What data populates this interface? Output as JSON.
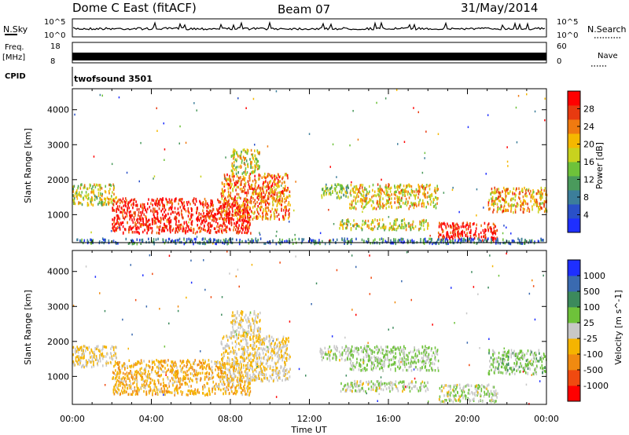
{
  "header": {
    "title": "Dome C East (fitACF)",
    "beam": "Beam 07",
    "date": "31/May/2014"
  },
  "top_panels": {
    "nsky_label": "N.Sky",
    "nsky_hi": "10^5",
    "nsky_lo": "10^0",
    "nsearch_label": "N.Search",
    "nsearch_hi": "10^5",
    "nsearch_lo": "10^0",
    "freq_label": "Freq.",
    "freq_unit": "[MHz]",
    "freq_hi": "18",
    "freq_lo": "8",
    "nave_label": "Nave",
    "nave_hi": "60",
    "nave_lo": "0",
    "cpid_label": "CPID",
    "cpid_value": "twofsound 3501"
  },
  "chart_data": [
    {
      "type": "heatmap",
      "name": "power",
      "ylabel": "Slant Range [km]",
      "xlabel": "",
      "ylim": [
        200,
        4600
      ],
      "yticks": [
        "1000",
        "2000",
        "3000",
        "4000"
      ],
      "colorbar_label": "Power [dB]",
      "colorbar_ticks": [
        "4",
        "8",
        "12",
        "16",
        "20",
        "24",
        "28"
      ],
      "colorbar_range": [
        0,
        32
      ],
      "colors": [
        "#1e2fff",
        "#2a50c8",
        "#3c7e9a",
        "#4a9a5c",
        "#6ec23a",
        "#c8d21e",
        "#f5b800",
        "#f07a10",
        "#e83a10",
        "#ff0000"
      ],
      "regions": [
        {
          "t0": 0.0,
          "t1": 2.2,
          "r0": 1300,
          "r1": 1900,
          "power": 18
        },
        {
          "t0": 2.0,
          "t1": 9.0,
          "r0": 500,
          "r1": 1500,
          "power": 30
        },
        {
          "t0": 7.5,
          "t1": 11.0,
          "r0": 900,
          "r1": 2200,
          "power": 24
        },
        {
          "t0": 8.0,
          "t1": 9.5,
          "r0": 2200,
          "r1": 2900,
          "power": 18
        },
        {
          "t0": 12.5,
          "t1": 14.0,
          "r0": 1500,
          "r1": 1900,
          "power": 14
        },
        {
          "t0": 14.0,
          "t1": 18.5,
          "r0": 1200,
          "r1": 1900,
          "power": 20
        },
        {
          "t0": 13.5,
          "t1": 18.0,
          "r0": 600,
          "r1": 900,
          "power": 18
        },
        {
          "t0": 18.5,
          "t1": 21.5,
          "r0": 300,
          "r1": 800,
          "power": 30
        },
        {
          "t0": 21.0,
          "t1": 24.0,
          "r0": 1100,
          "r1": 1800,
          "power": 22
        },
        {
          "t0": 0.0,
          "t1": 24.0,
          "r0": 200,
          "r1": 350,
          "power": 8
        }
      ]
    },
    {
      "type": "heatmap",
      "name": "velocity",
      "ylabel": "Slant Range [km]",
      "xlabel": "Time UT",
      "ylim": [
        200,
        4600
      ],
      "yticks": [
        "1000",
        "2000",
        "3000",
        "4000"
      ],
      "xticks": [
        "00:00",
        "04:00",
        "08:00",
        "12:00",
        "16:00",
        "20:00",
        "00:00"
      ],
      "colorbar_label": "Velocity [m s^-1]",
      "colorbar_ticks": [
        "1000",
        "500",
        "100",
        "25",
        "-25",
        "-100",
        "-500",
        "-1000"
      ],
      "colorbar_range": [
        -1200,
        1200
      ],
      "colors": [
        "#ff0000",
        "#f04a10",
        "#f08a10",
        "#f5b400",
        "#c8c8c8",
        "#6ec23a",
        "#3c8a5c",
        "#3a6ab0",
        "#1e2fff"
      ],
      "regions": [
        {
          "t0": 0.0,
          "t1": 2.2,
          "r0": 1300,
          "r1": 1900,
          "velocity": -150
        },
        {
          "t0": 2.0,
          "t1": 9.0,
          "r0": 500,
          "r1": 1500,
          "velocity": -300
        },
        {
          "t0": 7.5,
          "t1": 11.0,
          "r0": 900,
          "r1": 2200,
          "velocity": -120
        },
        {
          "t0": 8.0,
          "t1": 9.5,
          "r0": 2200,
          "r1": 2900,
          "velocity": -80
        },
        {
          "t0": 12.5,
          "t1": 14.0,
          "r0": 1500,
          "r1": 1900,
          "velocity": 100
        },
        {
          "t0": 14.0,
          "t1": 18.5,
          "r0": 1200,
          "r1": 1900,
          "velocity": 150
        },
        {
          "t0": 13.5,
          "t1": 18.0,
          "r0": 600,
          "r1": 900,
          "velocity": 80
        },
        {
          "t0": 18.5,
          "t1": 21.5,
          "r0": 300,
          "r1": 800,
          "velocity": 60
        },
        {
          "t0": 21.0,
          "t1": 24.0,
          "r0": 1100,
          "r1": 1800,
          "velocity": 200
        }
      ]
    }
  ]
}
